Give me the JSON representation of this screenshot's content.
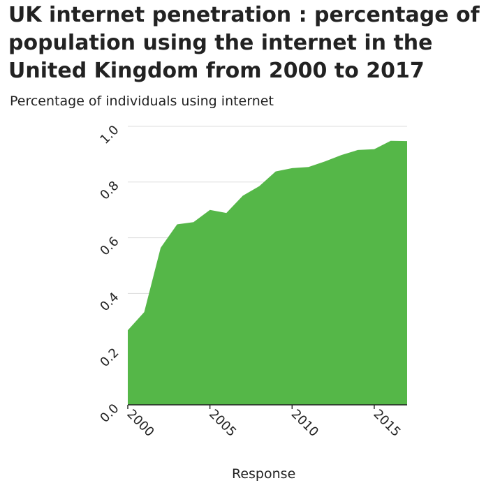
{
  "chart_data": {
    "type": "area",
    "title": "UK internet penetration : percentage of population using the internet in the United Kingdom from 2000 to 2017",
    "ylabel": "Percentage of individuals using internet",
    "xlabel": "Response",
    "x": [
      2000,
      2001,
      2002,
      2003,
      2004,
      2005,
      2006,
      2007,
      2008,
      2009,
      2010,
      2011,
      2012,
      2013,
      2014,
      2015,
      2016,
      2017
    ],
    "values": [
      0.268,
      0.333,
      0.564,
      0.648,
      0.656,
      0.7,
      0.689,
      0.751,
      0.785,
      0.838,
      0.85,
      0.854,
      0.874,
      0.897,
      0.915,
      0.918,
      0.948,
      0.947
    ],
    "xlim": [
      2000,
      2017
    ],
    "ylim": [
      0.0,
      1.0
    ],
    "x_ticks": [
      "2000",
      "2005",
      "2010",
      "2015"
    ],
    "x_tick_values": [
      2000,
      2005,
      2010,
      2015
    ],
    "y_ticks": [
      "0.0",
      "0.2",
      "0.4",
      "0.6",
      "0.8",
      "1.0"
    ],
    "y_tick_values": [
      0.0,
      0.2,
      0.4,
      0.6,
      0.8,
      1.0
    ],
    "grid": "horizontal",
    "fill_color": "#55b748",
    "grid_color": "#dddddd",
    "axis_color": "#222222"
  }
}
